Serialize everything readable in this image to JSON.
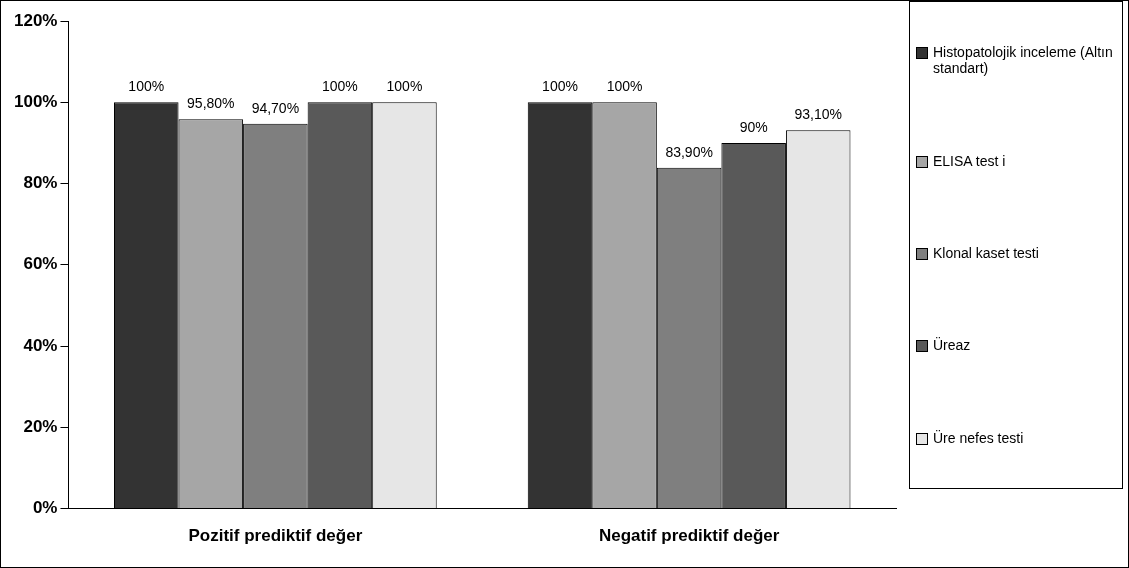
{
  "chart_data": {
    "type": "bar",
    "categories": [
      "Pozitif prediktif değer",
      "Negatif prediktif değer"
    ],
    "series": [
      {
        "name": "Histopatolojik inceleme (Altın standart)",
        "color": "#333333",
        "values": [
          100,
          100
        ],
        "value_labels": [
          "100%",
          "100%"
        ]
      },
      {
        "name": "ELISA test i",
        "color": "#a6a6a6",
        "values": [
          95.8,
          100
        ],
        "value_labels": [
          "95,80%",
          "100%"
        ]
      },
      {
        "name": "Klonal kaset testi",
        "color": "#7f7f7f",
        "values": [
          94.7,
          83.9
        ],
        "value_labels": [
          "94,70%",
          "83,90%"
        ]
      },
      {
        "name": "Üreaz",
        "color": "#595959",
        "values": [
          100,
          90
        ],
        "value_labels": [
          "100%",
          "90%"
        ]
      },
      {
        "name": "Üre nefes testi",
        "color": "#e6e6e6",
        "values": [
          100,
          93.1
        ],
        "value_labels": [
          "100%",
          "93,10%"
        ]
      }
    ],
    "ylim": [
      0,
      120
    ],
    "yticks": [
      {
        "value": 0,
        "label": "0%"
      },
      {
        "value": 20,
        "label": "20%"
      },
      {
        "value": 40,
        "label": "40%"
      },
      {
        "value": 60,
        "label": "60%"
      },
      {
        "value": 80,
        "label": "80%"
      },
      {
        "value": 100,
        "label": "100%"
      },
      {
        "value": 120,
        "label": "120%"
      }
    ],
    "grid": false,
    "legend": "right"
  }
}
